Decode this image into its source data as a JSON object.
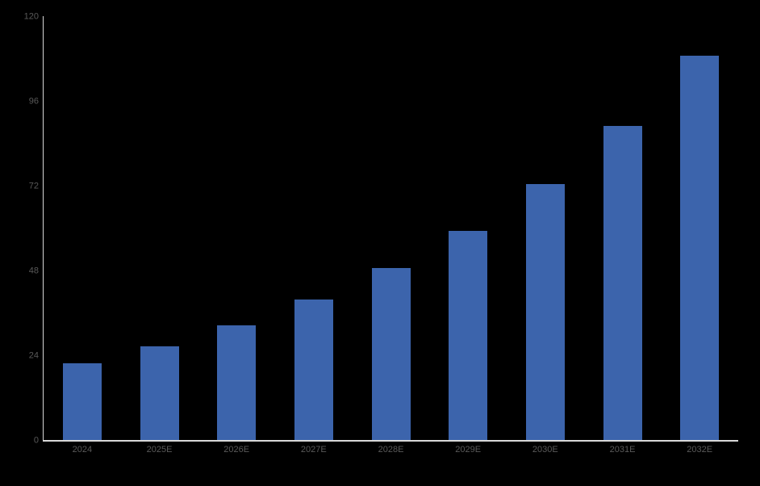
{
  "chart_data": {
    "type": "bar",
    "title": "",
    "xlabel": "",
    "ylabel": "",
    "categories": [
      "2024",
      "2025E",
      "2026E",
      "2027E",
      "2028E",
      "2029E",
      "2030E",
      "2031E",
      "2032E"
    ],
    "values": [
      21.6,
      26.5,
      32.4,
      39.7,
      48.6,
      59.3,
      72.5,
      88.8,
      108.7
    ],
    "ylim": [
      0,
      120
    ],
    "yticks": [
      0,
      24,
      48,
      72,
      96,
      120
    ],
    "grid": false,
    "legend_position": "none",
    "data_labels": false,
    "colors": {
      "bar": "#3C64AC",
      "axis_line": "#D9D9D9",
      "tick_label": "#595959",
      "background": "#000000"
    }
  }
}
